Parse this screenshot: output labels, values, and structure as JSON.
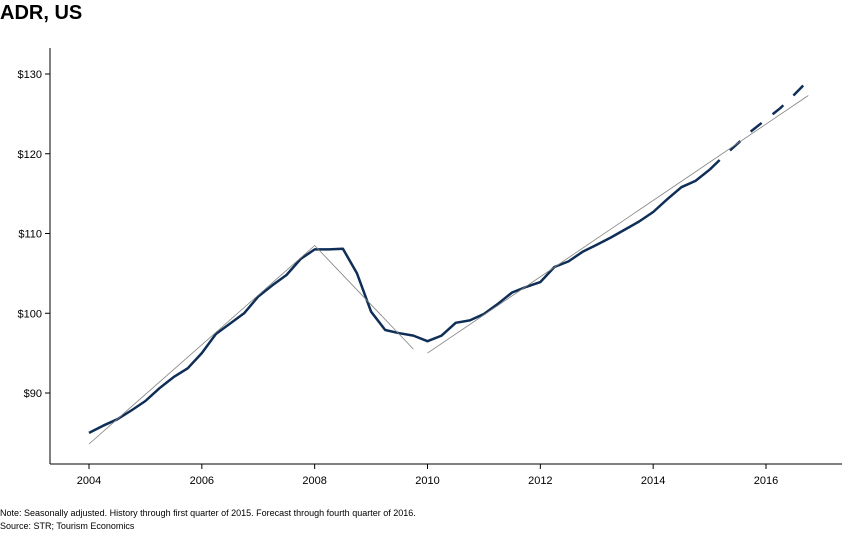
{
  "chart_data": {
    "type": "line",
    "title": "ADR, US",
    "xlabel": "",
    "ylabel": "",
    "xlim": [
      2004,
      2017.3
    ],
    "ylim": [
      83.8,
      131.7
    ],
    "x_ticks": [
      "2004",
      "2006",
      "2008",
      "2010",
      "2012",
      "2014",
      "2016"
    ],
    "x_tick_values": [
      2004,
      2006,
      2008,
      2010,
      2012,
      2014,
      2016
    ],
    "y_ticks": [
      "$90",
      "$100",
      "$110",
      "$120",
      "$130"
    ],
    "y_tick_values": [
      90,
      100,
      110,
      120,
      130
    ],
    "grid": false,
    "series": [
      {
        "style": "solid",
        "color": "#0f2e57",
        "x": [
          2004.0,
          2004.25,
          2004.5,
          2004.75,
          2005.0,
          2005.25,
          2005.5,
          2005.75,
          2006.0,
          2006.25,
          2006.5,
          2006.75,
          2007.0,
          2007.25,
          2007.5,
          2007.75,
          2008.0,
          2008.25,
          2008.5,
          2008.75,
          2009.0,
          2009.25,
          2009.5,
          2009.75,
          2010.0,
          2010.25,
          2010.5,
          2010.75,
          2011.0,
          2011.25,
          2011.5,
          2011.75,
          2012.0,
          2012.25,
          2012.5,
          2012.75,
          2013.0,
          2013.25,
          2013.5,
          2013.75,
          2014.0,
          2014.25,
          2014.5,
          2014.75,
          2015.0
        ],
        "y": [
          85.0,
          85.9,
          86.7,
          87.8,
          89.0,
          90.6,
          92.0,
          93.1,
          95.0,
          97.4,
          98.7,
          100.0,
          102.1,
          103.5,
          104.8,
          106.8,
          108.0,
          108.0,
          108.1,
          105.0,
          100.2,
          97.9,
          97.5,
          97.2,
          96.5,
          97.2,
          98.8,
          99.1,
          99.9,
          101.2,
          102.6,
          103.3,
          103.9,
          105.8,
          106.5,
          107.7,
          108.6,
          109.5,
          110.5,
          111.5,
          112.7,
          114.3,
          115.8,
          116.6,
          118.0
        ]
      },
      {
        "style": "dashed",
        "color": "#0f2e57",
        "x": [
          2015.0,
          2015.25,
          2015.5,
          2015.75,
          2016.0,
          2016.25,
          2016.5,
          2016.75
        ],
        "y": [
          118.0,
          119.7,
          121.3,
          122.9,
          124.3,
          125.7,
          127.4,
          129.2
        ]
      },
      {
        "style": "thin",
        "color": "#808080",
        "x": [
          2004.0,
          2008.0,
          2009.75
        ],
        "y": [
          83.6,
          108.5,
          95.5
        ]
      },
      {
        "style": "thin",
        "color": "#808080",
        "x": [
          2010.0,
          2016.75
        ],
        "y": [
          95.0,
          127.3
        ]
      }
    ]
  },
  "footer": {
    "note": "Note: Seasonally adjusted. History through first quarter of 2015. Forecast through fourth quarter of 2016.",
    "source": "Source: STR; Tourism Economics"
  }
}
